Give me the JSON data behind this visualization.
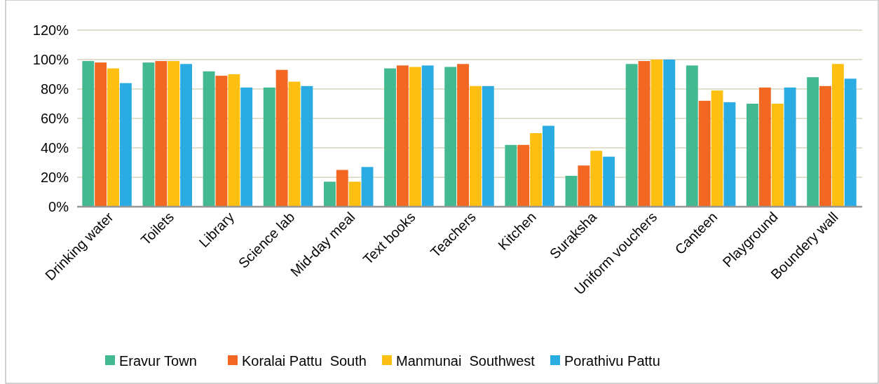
{
  "chart_data": {
    "type": "bar",
    "categories": [
      "Drinking water",
      "Toilets",
      "Library",
      "Science lab",
      "Mid-day meal",
      "Text books",
      "Teachers",
      "Kitchen",
      "Suraksha",
      "Uniform vouchers",
      "Canteen",
      "Playground",
      "Boundery wall"
    ],
    "series": [
      {
        "name": "Eravur Town",
        "color": "#43b991",
        "values": [
          99,
          98,
          92,
          81,
          17,
          94,
          95,
          42,
          21,
          97,
          96,
          70,
          88
        ]
      },
      {
        "name": "Koralai Pattu  South",
        "color": "#f26722",
        "values": [
          98,
          99,
          89,
          93,
          25,
          96,
          97,
          42,
          28,
          99,
          72,
          81,
          82
        ]
      },
      {
        "name": "Manmunai  Southwest",
        "color": "#fdbf12",
        "values": [
          94,
          99,
          90,
          85,
          17,
          95,
          82,
          50,
          38,
          100,
          79,
          70,
          97
        ]
      },
      {
        "name": "Porathivu Pattu",
        "color": "#2aace2",
        "values": [
          84,
          97,
          81,
          82,
          27,
          96,
          82,
          55,
          34,
          100,
          71,
          81,
          87
        ]
      }
    ],
    "ylim": [
      0,
      120
    ],
    "yticks": [
      {
        "value": 0,
        "label": "0%"
      },
      {
        "value": 20,
        "label": "20%"
      },
      {
        "value": 40,
        "label": "40%"
      },
      {
        "value": 60,
        "label": "60%"
      },
      {
        "value": 80,
        "label": "80%"
      },
      {
        "value": 100,
        "label": "100%"
      },
      {
        "value": 120,
        "label": "120%"
      }
    ],
    "grid": "y",
    "legend": "bottom"
  }
}
